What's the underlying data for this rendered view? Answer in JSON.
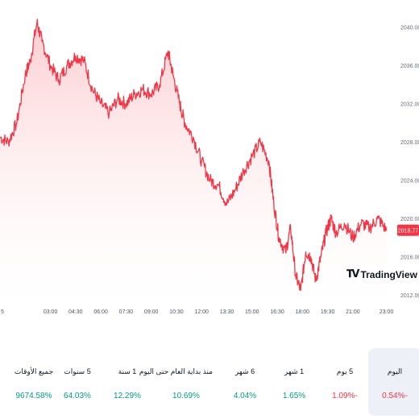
{
  "chart_data": {
    "type": "area",
    "ylim": [
      2011.0,
      2042.0
    ],
    "y_ticks": [
      "2040.00",
      "2036.00",
      "2032.00",
      "2028.00",
      "2024.00",
      "2020.00",
      "2016.00",
      "2012.00"
    ],
    "y_tick_values": [
      2040,
      2036,
      2032,
      2028,
      2024,
      2020,
      2016,
      2012
    ],
    "x_ticks": [
      "5",
      "03:00",
      "04:30",
      "06:00",
      "07:30",
      "09:00",
      "10:30",
      "12:00",
      "13:30",
      "15:00",
      "16:30",
      "18:00",
      "19:30",
      "21:00",
      "23:00"
    ],
    "x_tick_hours": [
      0,
      3,
      4.5,
      6,
      7.5,
      9,
      10.5,
      12,
      13.5,
      15,
      16.5,
      18,
      19.5,
      21,
      23
    ],
    "current_price": "2018.77",
    "x": [
      0,
      0.5,
      1,
      1.5,
      1.8,
      2.2,
      2.5,
      3,
      3.5,
      4,
      4.5,
      5,
      5.5,
      6,
      6.5,
      7,
      7.5,
      8,
      8.5,
      9,
      9.5,
      10,
      10.3,
      10.7,
      11,
      11.5,
      12,
      12.5,
      13,
      13.5,
      14,
      14.5,
      15,
      15.5,
      16,
      16.3,
      16.6,
      17,
      17.3,
      17.6,
      17.9,
      18.2,
      18.5,
      18.8,
      19.1,
      19.4,
      19.7,
      20,
      20.5,
      21,
      21.5,
      22,
      22.5,
      23
    ],
    "values": [
      2028.5,
      2028.0,
      2030.0,
      2035.0,
      2036.5,
      2040.5,
      2038.5,
      2036.0,
      2034.5,
      2036.0,
      2037.0,
      2036.5,
      2033.5,
      2032.0,
      2031.0,
      2032.5,
      2032.0,
      2033.0,
      2033.5,
      2033.0,
      2034.0,
      2037.5,
      2035.0,
      2032.0,
      2030.0,
      2028.5,
      2026.0,
      2024.0,
      2023.5,
      2021.5,
      2023.0,
      2025.0,
      2026.5,
      2028.0,
      2026.0,
      2021.5,
      2018.0,
      2016.5,
      2019.0,
      2014.0,
      2012.5,
      2016.5,
      2016.0,
      2013.5,
      2016.0,
      2018.5,
      2020.0,
      2018.5,
      2019.5,
      2018.0,
      2019.5,
      2019.0,
      2020.0,
      2018.77
    ],
    "colors": {
      "line": "#f23645",
      "fill_top": "#fcc9cd",
      "fill_bottom": "#ffffff",
      "price_label": "#f23645"
    }
  },
  "watermark": {
    "text": "TradingView",
    "icon": "tradingview-logo-icon"
  },
  "periods": [
    {
      "label": "جميع الأوقات",
      "value": "9674.58%",
      "trend": "pos",
      "active": false
    },
    {
      "label": "5 سنوات",
      "value": "64.03%",
      "trend": "pos",
      "active": false
    },
    {
      "label": "1 سنة",
      "value": "12.29%",
      "trend": "pos",
      "active": false
    },
    {
      "label": "منذ بداية العام حتى اليوم",
      "value": "10.69%",
      "trend": "pos",
      "active": false
    },
    {
      "label": "6 شهر",
      "value": "4.04%",
      "trend": "pos",
      "active": false
    },
    {
      "label": "1 شهر",
      "value": "1.65%",
      "trend": "pos",
      "active": false
    },
    {
      "label": "5 يوم",
      "value": "1.09%-",
      "trend": "neg",
      "active": false
    },
    {
      "label": "اليوم",
      "value": "0.54%-",
      "trend": "neg",
      "active": true
    }
  ]
}
